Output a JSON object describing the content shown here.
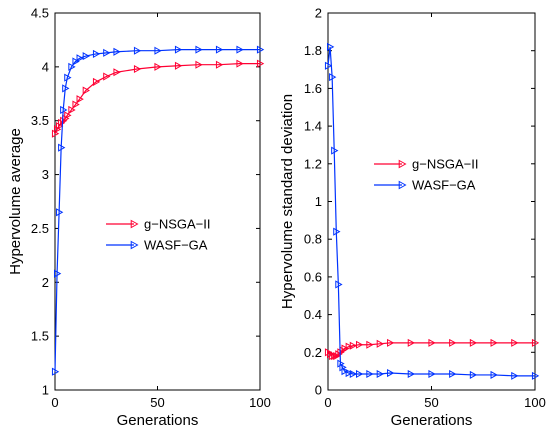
{
  "chart_data": [
    {
      "type": "line",
      "xlabel": "Generations",
      "ylabel": "Hypervolume average",
      "xlim": [
        0,
        100
      ],
      "ylim": [
        1,
        4.5
      ],
      "xticks": [
        0,
        50,
        100
      ],
      "yticks": [
        1,
        1.5,
        2,
        2.5,
        3,
        3.5,
        4,
        4.5
      ],
      "grid": false,
      "legend_position": "center",
      "x": [
        0,
        1,
        2,
        3,
        4,
        5,
        6,
        8,
        10,
        12,
        15,
        20,
        25,
        30,
        40,
        50,
        60,
        70,
        80,
        90,
        100
      ],
      "series": [
        {
          "name": "g−NSGA−II",
          "color": "#ff0033",
          "values": [
            3.38,
            3.42,
            3.45,
            3.48,
            3.5,
            3.52,
            3.55,
            3.6,
            3.65,
            3.7,
            3.78,
            3.86,
            3.91,
            3.95,
            3.98,
            4.0,
            4.01,
            4.02,
            4.02,
            4.03,
            4.03
          ]
        },
        {
          "name": "WASF−GA",
          "color": "#0033ff",
          "values": [
            1.17,
            2.08,
            2.65,
            3.25,
            3.6,
            3.8,
            3.9,
            4.0,
            4.05,
            4.08,
            4.1,
            4.12,
            4.13,
            4.14,
            4.15,
            4.15,
            4.16,
            4.16,
            4.16,
            4.16,
            4.16
          ]
        }
      ]
    },
    {
      "type": "line",
      "xlabel": "Generations",
      "ylabel": "Hypervolume standard deviation",
      "xlim": [
        0,
        100
      ],
      "ylim": [
        0,
        2
      ],
      "xticks": [
        0,
        50,
        100
      ],
      "yticks": [
        0,
        0.2,
        0.4,
        0.6,
        0.8,
        1,
        1.2,
        1.4,
        1.6,
        1.8,
        2
      ],
      "grid": false,
      "legend_position": "center-right",
      "x": [
        0,
        1,
        2,
        3,
        4,
        5,
        6,
        7,
        8,
        10,
        12,
        15,
        20,
        25,
        30,
        40,
        50,
        60,
        70,
        80,
        90,
        100
      ],
      "series": [
        {
          "name": "g−NSGA−II",
          "color": "#ff0033",
          "values": [
            0.2,
            0.19,
            0.18,
            0.18,
            0.18,
            0.19,
            0.2,
            0.21,
            0.22,
            0.23,
            0.235,
            0.24,
            0.24,
            0.245,
            0.25,
            0.25,
            0.25,
            0.25,
            0.25,
            0.25,
            0.25,
            0.25
          ]
        },
        {
          "name": "WASF−GA",
          "color": "#0033ff",
          "values": [
            1.72,
            1.82,
            1.66,
            1.27,
            0.84,
            0.56,
            0.14,
            0.12,
            0.1,
            0.09,
            0.085,
            0.085,
            0.085,
            0.085,
            0.09,
            0.085,
            0.085,
            0.085,
            0.08,
            0.08,
            0.075,
            0.075
          ]
        }
      ]
    }
  ]
}
